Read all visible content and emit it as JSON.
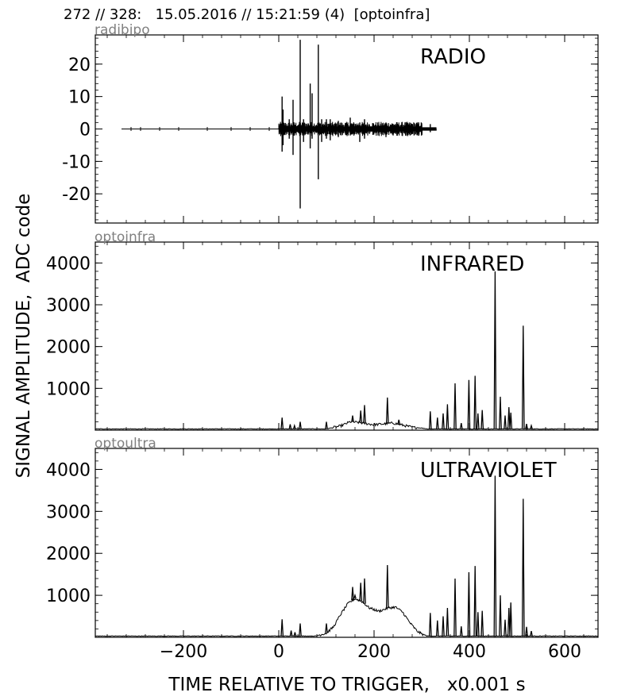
{
  "header": "272 // 328:   15.05.2016 // 15:21:59 (4)  [optoinfra]",
  "ylabel": "SIGNAL AMPLITUDE,  ADC code",
  "xlabel": "TIME RELATIVE TO TRIGGER,   x0.001 s",
  "colors": {
    "trace": "#000000",
    "channel_label": "#808080"
  },
  "chart_data": [
    {
      "type": "line",
      "channel": "radibipo",
      "title": "RADIO",
      "xlim": [
        -385,
        670
      ],
      "ylim": [
        -29,
        29
      ],
      "xticks": [
        -200,
        0,
        200,
        400,
        600
      ],
      "yticks": [
        20,
        10,
        0,
        -10,
        -20
      ],
      "ytick_labels": [
        "20",
        "10",
        "0",
        "-10",
        "-20"
      ],
      "signal_range": [
        -330,
        330
      ],
      "spikes": [
        {
          "x": 7,
          "hi": 10,
          "lo": -7
        },
        {
          "x": 9,
          "hi": 6,
          "lo": -5
        },
        {
          "x": 22,
          "hi": 3,
          "lo": -3
        },
        {
          "x": 30,
          "hi": 9,
          "lo": -8
        },
        {
          "x": 45,
          "hi": 27.5,
          "lo": -24.5
        },
        {
          "x": 52,
          "hi": 3,
          "lo": -4
        },
        {
          "x": 66,
          "hi": 14,
          "lo": -6
        },
        {
          "x": 70,
          "hi": 11,
          "lo": -3
        },
        {
          "x": 83,
          "hi": 26,
          "lo": -15.5
        },
        {
          "x": 90,
          "hi": 3,
          "lo": -4
        },
        {
          "x": 100,
          "hi": 3,
          "lo": -3
        },
        {
          "x": 108,
          "hi": 3,
          "lo": -3.5
        },
        {
          "x": 125,
          "hi": 2.5,
          "lo": -2.5
        },
        {
          "x": 150,
          "hi": 3.5,
          "lo": -2
        },
        {
          "x": 170,
          "hi": 2,
          "lo": -4
        },
        {
          "x": 180,
          "hi": 3,
          "lo": -3
        },
        {
          "x": 225,
          "hi": 2,
          "lo": -2.5
        },
        {
          "x": 240,
          "hi": 1.5,
          "lo": -2
        },
        {
          "x": 265,
          "hi": 2,
          "lo": -1.5
        },
        {
          "x": 300,
          "hi": 1.5,
          "lo": -1.5
        },
        {
          "x": 318,
          "hi": 1.5,
          "lo": -1
        }
      ]
    },
    {
      "type": "line",
      "channel": "optoinfra",
      "title": "INFRARED",
      "xlim": [
        -385,
        670
      ],
      "ylim": [
        0,
        4500
      ],
      "xticks": [
        -200,
        0,
        200,
        400,
        600
      ],
      "yticks": [
        1000,
        2000,
        3000,
        4000
      ],
      "ytick_labels": [
        "1000",
        "2000",
        "3000",
        "4000"
      ],
      "baseline": 30,
      "envelope": [
        [
          100,
          30
        ],
        [
          130,
          100
        ],
        [
          150,
          200
        ],
        [
          170,
          180
        ],
        [
          200,
          130
        ],
        [
          220,
          150
        ],
        [
          240,
          170
        ],
        [
          260,
          120
        ],
        [
          280,
          70
        ],
        [
          300,
          50
        ],
        [
          310,
          35
        ]
      ],
      "peaks": [
        {
          "x": 7,
          "v": 300
        },
        {
          "x": 24,
          "v": 140
        },
        {
          "x": 33,
          "v": 110
        },
        {
          "x": 45,
          "v": 200
        },
        {
          "x": 100,
          "v": 200
        },
        {
          "x": 155,
          "v": 350
        },
        {
          "x": 172,
          "v": 470
        },
        {
          "x": 180,
          "v": 600
        },
        {
          "x": 228,
          "v": 780
        },
        {
          "x": 252,
          "v": 250
        },
        {
          "x": 318,
          "v": 450
        },
        {
          "x": 333,
          "v": 300
        },
        {
          "x": 345,
          "v": 400
        },
        {
          "x": 354,
          "v": 620
        },
        {
          "x": 370,
          "v": 1120
        },
        {
          "x": 383,
          "v": 170
        },
        {
          "x": 399,
          "v": 1200
        },
        {
          "x": 412,
          "v": 1300
        },
        {
          "x": 418,
          "v": 400
        },
        {
          "x": 427,
          "v": 480
        },
        {
          "x": 454,
          "v": 3800
        },
        {
          "x": 465,
          "v": 800
        },
        {
          "x": 475,
          "v": 350
        },
        {
          "x": 483,
          "v": 550
        },
        {
          "x": 487,
          "v": 420
        },
        {
          "x": 513,
          "v": 2500
        },
        {
          "x": 520,
          "v": 150
        },
        {
          "x": 530,
          "v": 110
        }
      ]
    },
    {
      "type": "line",
      "channel": "optoultra",
      "title": "ULTRAVIOLET",
      "xlim": [
        -385,
        670
      ],
      "ylim": [
        0,
        4500
      ],
      "xticks": [
        -200,
        0,
        200,
        400,
        600
      ],
      "yticks": [
        1000,
        2000,
        3000,
        4000
      ],
      "ytick_labels": [
        "1000",
        "2000",
        "3000",
        "4000"
      ],
      "xtick_labels": [
        "−200",
        "0",
        "200",
        "400",
        "600"
      ],
      "baseline": 30,
      "envelope": [
        [
          80,
          40
        ],
        [
          100,
          100
        ],
        [
          115,
          250
        ],
        [
          130,
          550
        ],
        [
          145,
          800
        ],
        [
          160,
          920
        ],
        [
          175,
          850
        ],
        [
          190,
          700
        ],
        [
          210,
          620
        ],
        [
          230,
          700
        ],
        [
          245,
          720
        ],
        [
          260,
          600
        ],
        [
          275,
          350
        ],
        [
          290,
          150
        ],
        [
          300,
          80
        ],
        [
          310,
          40
        ]
      ],
      "peaks": [
        {
          "x": 7,
          "v": 430
        },
        {
          "x": 26,
          "v": 160
        },
        {
          "x": 34,
          "v": 120
        },
        {
          "x": 45,
          "v": 330
        },
        {
          "x": 100,
          "v": 330
        },
        {
          "x": 155,
          "v": 1200
        },
        {
          "x": 160,
          "v": 1000
        },
        {
          "x": 172,
          "v": 1300
        },
        {
          "x": 180,
          "v": 1400
        },
        {
          "x": 228,
          "v": 1720
        },
        {
          "x": 318,
          "v": 580
        },
        {
          "x": 333,
          "v": 400
        },
        {
          "x": 345,
          "v": 500
        },
        {
          "x": 354,
          "v": 700
        },
        {
          "x": 370,
          "v": 1400
        },
        {
          "x": 383,
          "v": 260
        },
        {
          "x": 399,
          "v": 1550
        },
        {
          "x": 412,
          "v": 1700
        },
        {
          "x": 418,
          "v": 600
        },
        {
          "x": 427,
          "v": 630
        },
        {
          "x": 454,
          "v": 3850
        },
        {
          "x": 465,
          "v": 1000
        },
        {
          "x": 475,
          "v": 420
        },
        {
          "x": 483,
          "v": 700
        },
        {
          "x": 487,
          "v": 830
        },
        {
          "x": 513,
          "v": 3300
        },
        {
          "x": 520,
          "v": 250
        },
        {
          "x": 530,
          "v": 150
        }
      ]
    }
  ]
}
